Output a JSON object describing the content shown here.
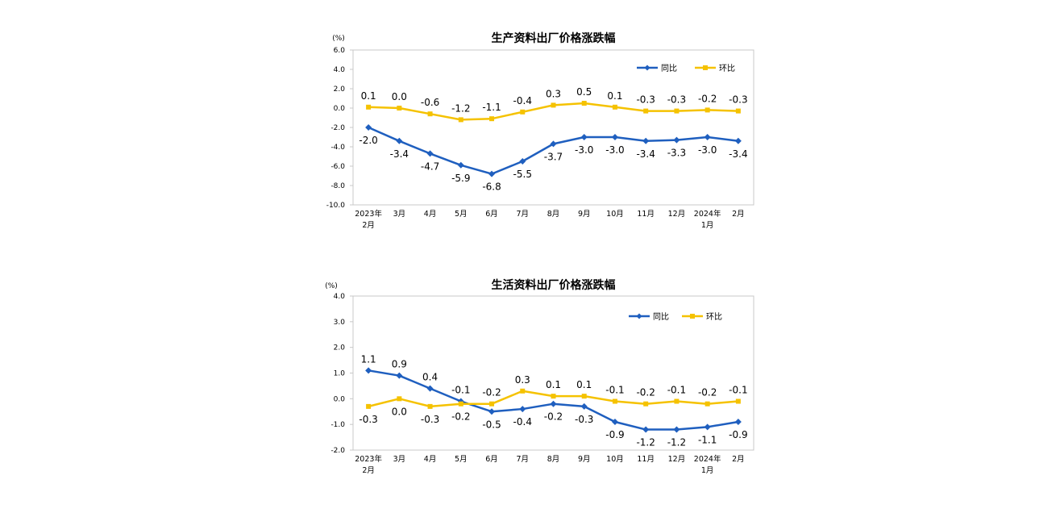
{
  "chart_data": [
    {
      "type": "line",
      "title": "生产资料出厂价格涨跌幅",
      "unit": "(%)",
      "categories": [
        [
          "2023年",
          "2月"
        ],
        [
          "3月"
        ],
        [
          "4月"
        ],
        [
          "5月"
        ],
        [
          "6月"
        ],
        [
          "7月"
        ],
        [
          "8月"
        ],
        [
          "9月"
        ],
        [
          "10月"
        ],
        [
          "11月"
        ],
        [
          "12月"
        ],
        [
          "2024年",
          "1月"
        ],
        [
          "2月"
        ]
      ],
      "ylim": [
        -10.0,
        6.0
      ],
      "yticks": [
        "6.0",
        "4.0",
        "2.0",
        "0.0",
        "-2.0",
        "-4.0",
        "-6.0",
        "-8.0",
        "-10.0"
      ],
      "grid": false,
      "legend": "top-right",
      "series": [
        {
          "name": "同比",
          "color": "#1f5fbf",
          "marker": "diamond",
          "values": [
            -2.0,
            -3.4,
            -4.7,
            -5.9,
            -6.8,
            -5.5,
            -3.7,
            -3.0,
            -3.0,
            -3.4,
            -3.3,
            -3.0,
            -3.4
          ],
          "labels": [
            "-2.0",
            "-3.4",
            "-4.7",
            "-5.9",
            "-6.8",
            "-5.5",
            "-3.7",
            "-3.0",
            "-3.0",
            "-3.4",
            "-3.3",
            "-3.0",
            "-3.4"
          ]
        },
        {
          "name": "环比",
          "color": "#f5c200",
          "marker": "square",
          "values": [
            0.1,
            0.0,
            -0.6,
            -1.2,
            -1.1,
            -0.4,
            0.3,
            0.5,
            0.1,
            -0.3,
            -0.3,
            -0.2,
            -0.3
          ],
          "labels": [
            "0.1",
            "0.0",
            "-0.6",
            "-1.2",
            "-1.1",
            "-0.4",
            "0.3",
            "0.5",
            "0.1",
            "-0.3",
            "-0.3",
            "-0.2",
            "-0.3"
          ]
        }
      ]
    },
    {
      "type": "line",
      "title": "生活资料出厂价格涨跌幅",
      "unit": "(%)",
      "categories": [
        [
          "2023年",
          "2月"
        ],
        [
          "3月"
        ],
        [
          "4月"
        ],
        [
          "5月"
        ],
        [
          "6月"
        ],
        [
          "7月"
        ],
        [
          "8月"
        ],
        [
          "9月"
        ],
        [
          "10月"
        ],
        [
          "11月"
        ],
        [
          "12月"
        ],
        [
          "2024年",
          "1月"
        ],
        [
          "2月"
        ]
      ],
      "ylim": [
        -2.0,
        4.0
      ],
      "yticks": [
        "4.0",
        "3.0",
        "2.0",
        "1.0",
        "0.0",
        "-1.0",
        "-2.0"
      ],
      "grid": false,
      "legend": "top-right",
      "series": [
        {
          "name": "同比",
          "color": "#1f5fbf",
          "marker": "diamond",
          "values": [
            1.1,
            0.9,
            0.4,
            -0.1,
            -0.5,
            -0.4,
            -0.2,
            -0.3,
            -0.9,
            -1.2,
            -1.2,
            -1.1,
            -0.9
          ],
          "labels": [
            "1.1",
            "0.9",
            "0.4",
            "-0.1",
            "-0.5",
            "-0.4",
            "-0.2",
            "-0.3",
            "-0.9",
            "-1.2",
            "-1.2",
            "-1.1",
            "-0.9"
          ]
        },
        {
          "name": "环比",
          "color": "#f5c200",
          "marker": "square",
          "values": [
            -0.3,
            0.0,
            -0.3,
            -0.2,
            -0.2,
            0.3,
            0.1,
            0.1,
            -0.1,
            -0.2,
            -0.1,
            -0.2,
            -0.1
          ],
          "labels": [
            "-0.3",
            "0.0",
            "-0.3",
            "-0.2",
            "-0.2",
            "0.3",
            "0.1",
            "0.1",
            "-0.1",
            "-0.2",
            "-0.1",
            "-0.2",
            "-0.1"
          ]
        }
      ]
    }
  ]
}
